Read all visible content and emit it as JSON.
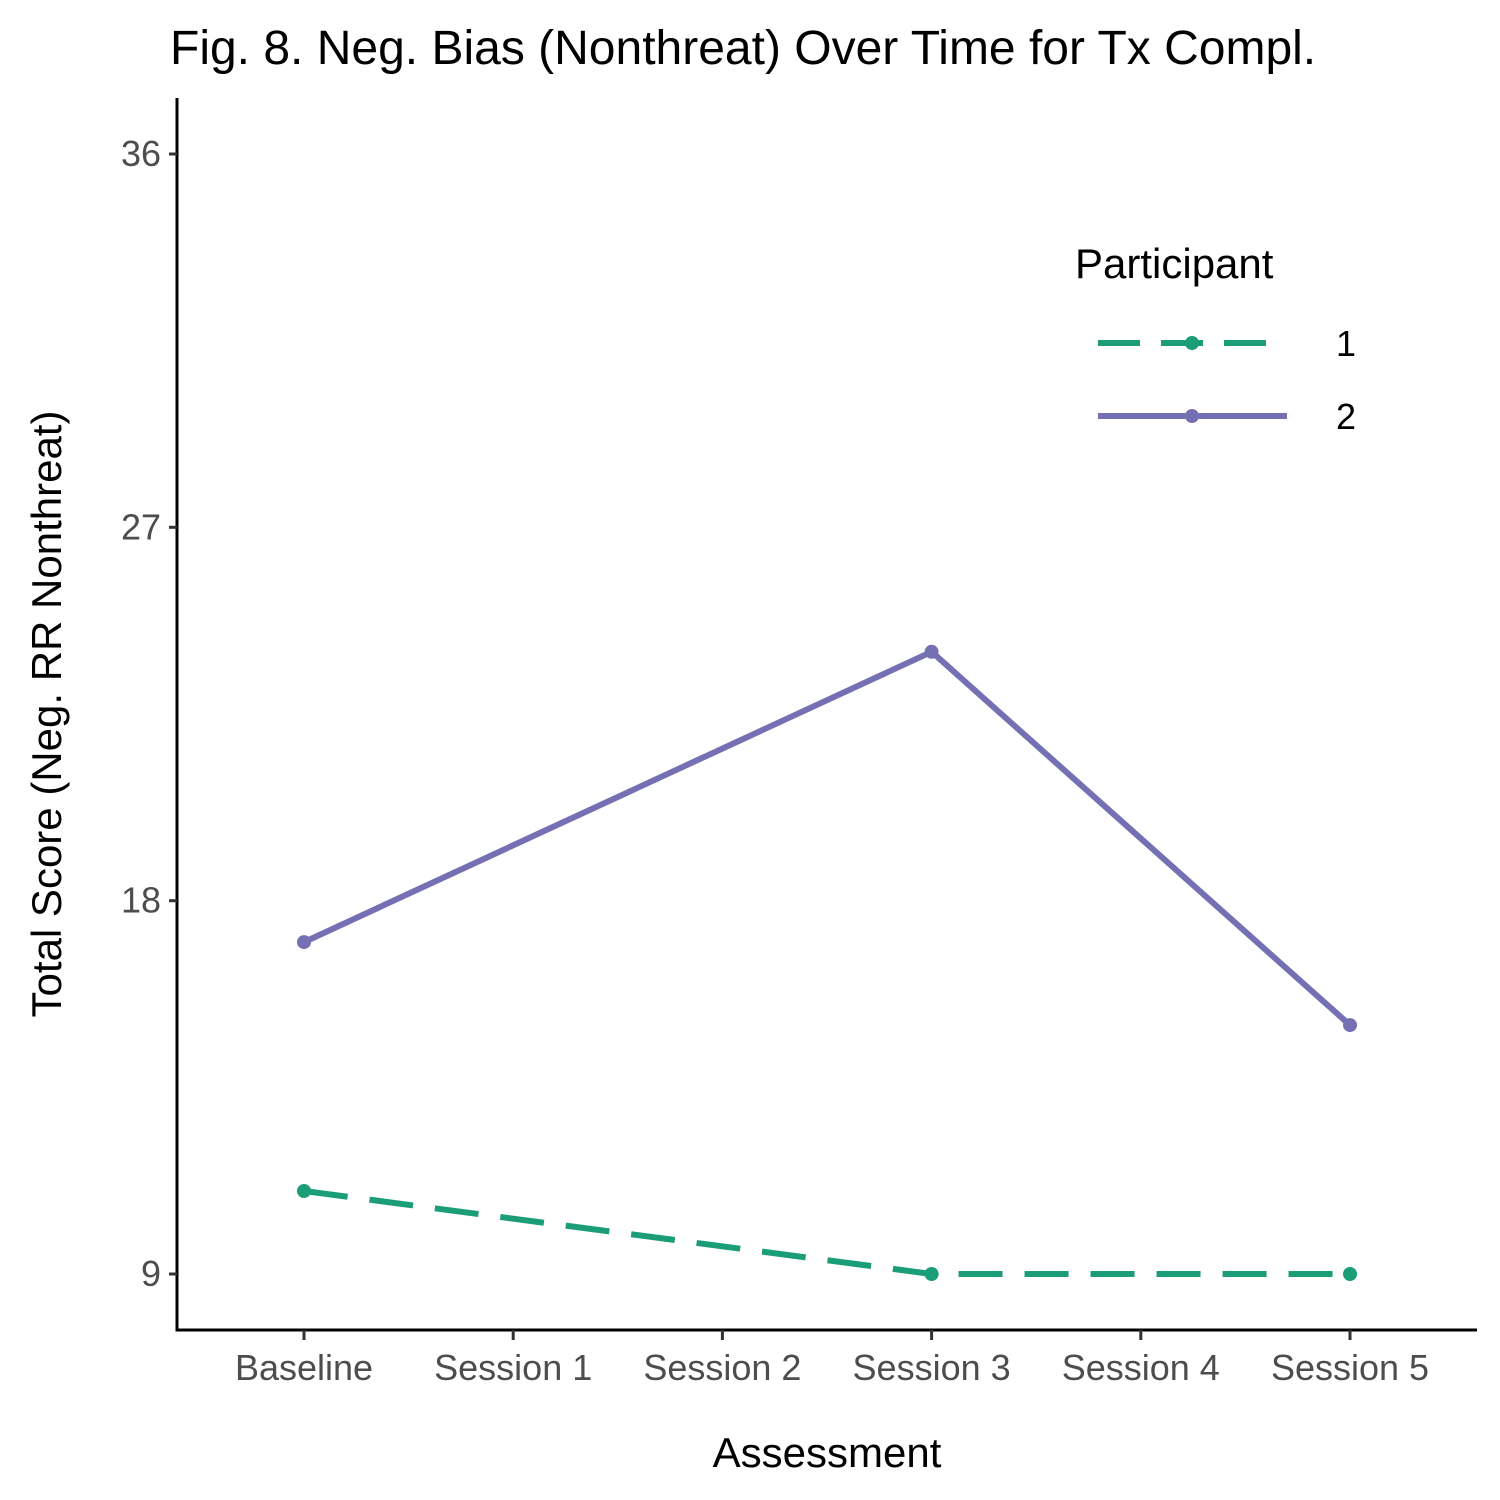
{
  "chart_data": {
    "type": "line",
    "title": "Fig. 8. Neg. Bias (Nonthreat) Over Time for Tx Compl.",
    "xlabel": "Assessment",
    "ylabel": "Total Score (Neg. RR Nonthreat)",
    "categories": [
      "Baseline",
      "Session 1",
      "Session 2",
      "Session 3",
      "Session 4",
      "Session 5"
    ],
    "yticks": [
      9,
      18,
      27,
      36
    ],
    "ylim": [
      7.65,
      37.35
    ],
    "grid": false,
    "legend": {
      "title": "Participant",
      "position": "top-right"
    },
    "series": [
      {
        "name": "1",
        "color": "#1b9e77",
        "dash": "dashed",
        "points": [
          {
            "category": "Baseline",
            "value": 11
          },
          {
            "category": "Session 3",
            "value": 9
          },
          {
            "category": "Session 5",
            "value": 9
          }
        ]
      },
      {
        "name": "2",
        "color": "#7570b3",
        "dash": "solid",
        "points": [
          {
            "category": "Baseline",
            "value": 17
          },
          {
            "category": "Session 3",
            "value": 24
          },
          {
            "category": "Session 5",
            "value": 15
          }
        ]
      }
    ]
  }
}
